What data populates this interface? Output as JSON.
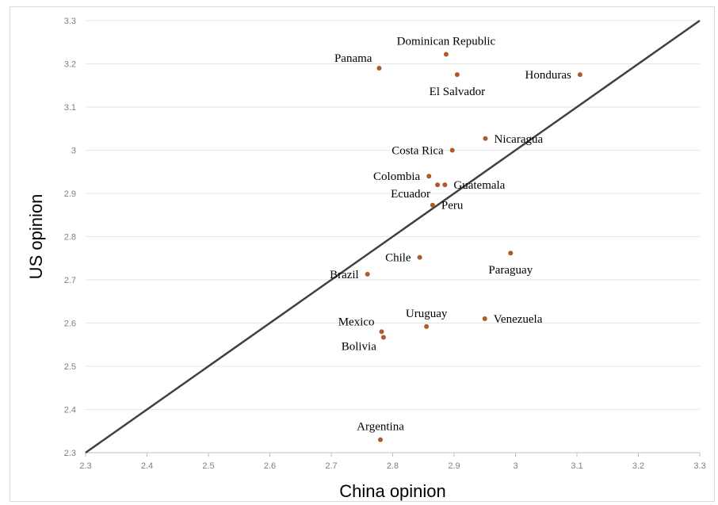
{
  "chart_data": {
    "type": "scatter",
    "xlabel": "China opinion",
    "ylabel": "US opinion",
    "xlim": [
      2.3,
      3.3
    ],
    "ylim": [
      2.3,
      3.3
    ],
    "xticks": [
      "2.3",
      "2.4",
      "2.5",
      "2.6",
      "2.7",
      "2.8",
      "2.9",
      "3",
      "3.1",
      "3.2",
      "3.3"
    ],
    "yticks": [
      "2.3",
      "2.4",
      "2.5",
      "2.6",
      "2.7",
      "2.8",
      "2.9",
      "3",
      "3.1",
      "3.2",
      "3.3"
    ],
    "grid": "horizontal",
    "reference_line": {
      "from": [
        2.3,
        2.3
      ],
      "to": [
        3.3,
        3.3
      ],
      "color": "#404040"
    },
    "point_color": "#b05a2a",
    "points": [
      {
        "label": "Dominican Republic",
        "x": 2.887,
        "y": 3.222,
        "label_pos": "above"
      },
      {
        "label": "Panama",
        "x": 2.778,
        "y": 3.19,
        "label_pos": "above-left"
      },
      {
        "label": "El Salvador",
        "x": 2.905,
        "y": 3.175,
        "label_pos": "below"
      },
      {
        "label": "Honduras",
        "x": 3.105,
        "y": 3.175,
        "label_pos": "left"
      },
      {
        "label": "Nicaragua",
        "x": 2.951,
        "y": 3.027,
        "label_pos": "right"
      },
      {
        "label": "Costa Rica",
        "x": 2.897,
        "y": 3.0,
        "label_pos": "left"
      },
      {
        "label": "Colombia",
        "x": 2.859,
        "y": 2.94,
        "label_pos": "left"
      },
      {
        "label": "Ecuador",
        "x": 2.873,
        "y": 2.92,
        "label_pos": "below-left"
      },
      {
        "label": "Guatemala",
        "x": 2.885,
        "y": 2.92,
        "label_pos": "right"
      },
      {
        "label": "Peru",
        "x": 2.865,
        "y": 2.873,
        "label_pos": "right"
      },
      {
        "label": "Paraguay",
        "x": 2.992,
        "y": 2.762,
        "label_pos": "below"
      },
      {
        "label": "Chile",
        "x": 2.844,
        "y": 2.752,
        "label_pos": "left"
      },
      {
        "label": "Brazil",
        "x": 2.759,
        "y": 2.713,
        "label_pos": "left"
      },
      {
        "label": "Uruguay",
        "x": 2.855,
        "y": 2.592,
        "label_pos": "above"
      },
      {
        "label": "Venezuela",
        "x": 2.95,
        "y": 2.61,
        "label_pos": "right"
      },
      {
        "label": "Mexico",
        "x": 2.782,
        "y": 2.58,
        "label_pos": "above-left"
      },
      {
        "label": "Bolivia",
        "x": 2.785,
        "y": 2.567,
        "label_pos": "below-left"
      },
      {
        "label": "Argentina",
        "x": 2.78,
        "y": 2.33,
        "label_pos": "above"
      }
    ]
  }
}
